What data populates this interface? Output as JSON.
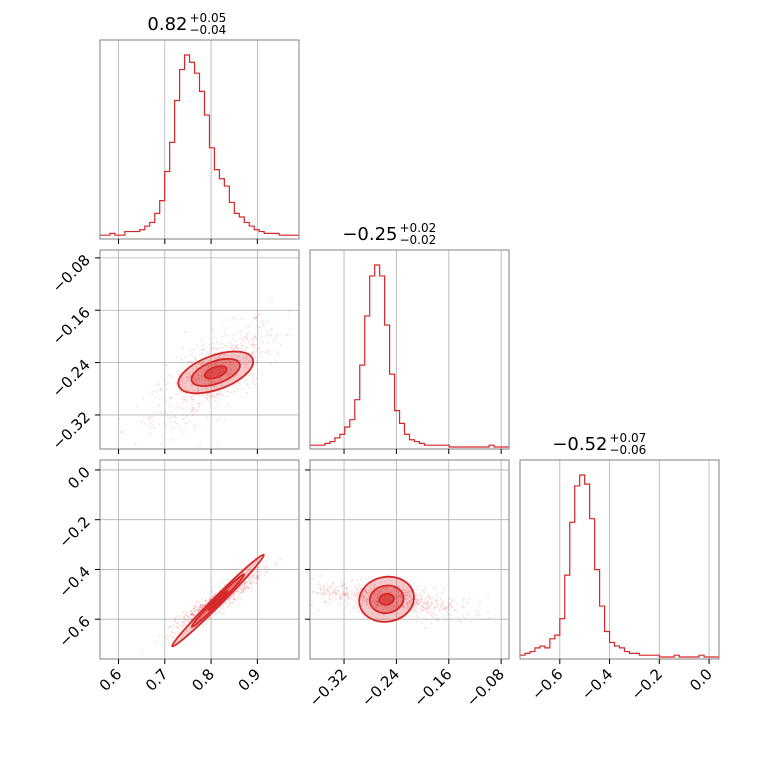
{
  "chart_data": {
    "type": "corner",
    "style": {
      "color": "#d62728",
      "grid": true
    },
    "parameters": [
      {
        "title_base": "0.82",
        "title_plus": "+0.05",
        "title_minus": "−0.04",
        "range": [
          0.56,
          0.99
        ],
        "ticks": [
          0.6,
          0.7,
          0.8,
          0.9
        ],
        "tick_labels": [
          "0.6",
          "0.7",
          "0.8",
          "0.9"
        ]
      },
      {
        "title_base": "−0.25",
        "title_plus": "+0.02",
        "title_minus": "−0.02",
        "range": [
          -0.372,
          -0.068
        ],
        "ticks": [
          -0.32,
          -0.24,
          -0.16,
          -0.08
        ],
        "tick_labels": [
          "−0.32",
          "−0.24",
          "−0.16",
          "−0.08"
        ]
      },
      {
        "title_base": "−0.52",
        "title_plus": "+0.07",
        "title_minus": "−0.06",
        "range": [
          -0.76,
          0.04
        ],
        "ticks": [
          -0.6,
          -0.4,
          -0.2,
          0.0
        ],
        "tick_labels": [
          "−0.6",
          "−0.4",
          "−0.2",
          "0.0"
        ]
      }
    ],
    "histograms": [
      {
        "param": 0,
        "bin_start": 0.56,
        "bin_width": 0.01075,
        "values": [
          0.01,
          0.01,
          0.02,
          0.01,
          0.01,
          0.03,
          0.03,
          0.03,
          0.04,
          0.06,
          0.08,
          0.13,
          0.2,
          0.36,
          0.52,
          0.75,
          0.92,
          1.0,
          0.96,
          0.9,
          0.8,
          0.67,
          0.49,
          0.37,
          0.32,
          0.28,
          0.19,
          0.13,
          0.11,
          0.08,
          0.06,
          0.04,
          0.03,
          0.02,
          0.02,
          0.02,
          0.01,
          0.01,
          0.01,
          0.01
        ]
      },
      {
        "param": 1,
        "bin_start": -0.372,
        "bin_width": 0.0076,
        "values": [
          0.01,
          0.01,
          0.01,
          0.02,
          0.03,
          0.05,
          0.07,
          0.11,
          0.15,
          0.26,
          0.45,
          0.72,
          0.94,
          1.0,
          0.94,
          0.67,
          0.4,
          0.2,
          0.13,
          0.07,
          0.04,
          0.03,
          0.02,
          0.01,
          0.01,
          0.01,
          0.01,
          0.01,
          0.0,
          0.0,
          0.0,
          0.0,
          0.0,
          0.0,
          0.0,
          0.0,
          0.01,
          0.0,
          0.0,
          0.0
        ]
      },
      {
        "param": 2,
        "bin_start": -0.76,
        "bin_width": 0.02,
        "values": [
          0.01,
          0.02,
          0.03,
          0.05,
          0.06,
          0.05,
          0.1,
          0.12,
          0.21,
          0.45,
          0.74,
          0.94,
          1.0,
          0.95,
          0.76,
          0.48,
          0.28,
          0.14,
          0.08,
          0.06,
          0.05,
          0.03,
          0.02,
          0.02,
          0.01,
          0.01,
          0.01,
          0.01,
          0.0,
          0.0,
          0.0,
          0.01,
          0.0,
          0.0,
          0.0,
          0.0,
          0.01,
          0.0,
          0.0,
          0.0
        ]
      }
    ],
    "scatters": [
      {
        "x_param": 0,
        "y_param": 1,
        "center": [
          0.81,
          -0.255
        ],
        "slope": 0.48,
        "along_sd": 0.048,
        "perp_sd": 0.016,
        "contours": [
          {
            "level": "outer",
            "rx": 0.085,
            "ry": 0.026,
            "angle_deg": 20
          },
          {
            "level": "middle",
            "rx": 0.055,
            "ry": 0.017,
            "angle_deg": 20
          },
          {
            "level": "inner",
            "rx": 0.025,
            "ry": 0.008,
            "angle_deg": 20
          }
        ]
      },
      {
        "x_param": 0,
        "y_param": 2,
        "center": [
          0.815,
          -0.525
        ],
        "slope": 1.3,
        "along_sd": 0.045,
        "perp_sd": 0.008,
        "contours": [
          {
            "level": "outer",
            "rx": 0.14,
            "ry": 0.018,
            "angle_deg": 45
          },
          {
            "level": "middle",
            "rx": 0.08,
            "ry": 0.011,
            "angle_deg": 45
          },
          {
            "level": "inner",
            "rx": 0.03,
            "ry": 0.005,
            "angle_deg": 45
          }
        ]
      },
      {
        "x_param": 1,
        "y_param": 2,
        "center": [
          -0.255,
          -0.52
        ],
        "slope": 2.6,
        "along_sd": 0.016,
        "perp_sd": 0.04,
        "contours": [
          {
            "level": "outer",
            "rx": 0.042,
            "ry": 0.09,
            "angle_deg": 10
          },
          {
            "level": "middle",
            "rx": 0.026,
            "ry": 0.055,
            "angle_deg": 10
          },
          {
            "level": "inner",
            "rx": 0.011,
            "ry": 0.022,
            "angle_deg": 10
          }
        ]
      }
    ]
  }
}
